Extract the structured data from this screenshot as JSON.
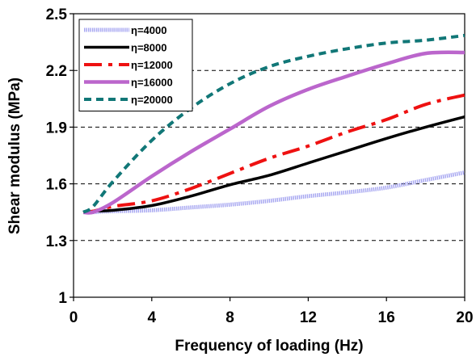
{
  "chart_data": {
    "type": "line",
    "title": "",
    "xlabel": "Frequency of loading (Hz)",
    "ylabel": "Shear modulus (MPa)",
    "xlim": [
      0,
      20
    ],
    "ylim": [
      1,
      2.5
    ],
    "xticks": [
      "0",
      "4",
      "8",
      "12",
      "16",
      "20"
    ],
    "yticks": [
      "1",
      "1.3",
      "1.6",
      "1.9",
      "2.2",
      "2.5"
    ],
    "grid": "horizontal dashed",
    "legend_position": "top-left",
    "series": [
      {
        "name": "η=4000",
        "color": "#9999ee",
        "style": "dotted-thick",
        "points": [
          [
            0.5,
            1.45
          ],
          [
            1,
            1.45
          ],
          [
            2,
            1.455
          ],
          [
            4,
            1.46
          ],
          [
            6,
            1.475
          ],
          [
            8,
            1.49
          ],
          [
            10,
            1.51
          ],
          [
            12,
            1.535
          ],
          [
            14,
            1.555
          ],
          [
            16,
            1.58
          ],
          [
            18,
            1.62
          ],
          [
            20,
            1.66
          ]
        ]
      },
      {
        "name": "η=8000",
        "color": "#000000",
        "style": "solid",
        "points": [
          [
            0.5,
            1.45
          ],
          [
            1,
            1.455
          ],
          [
            2,
            1.46
          ],
          [
            4,
            1.485
          ],
          [
            6,
            1.535
          ],
          [
            8,
            1.595
          ],
          [
            10,
            1.645
          ],
          [
            12,
            1.71
          ],
          [
            14,
            1.775
          ],
          [
            16,
            1.84
          ],
          [
            18,
            1.9
          ],
          [
            20,
            1.955
          ]
        ]
      },
      {
        "name": "η=12000",
        "color": "#ee1111",
        "style": "dash-dot",
        "points": [
          [
            0.5,
            1.45
          ],
          [
            1,
            1.455
          ],
          [
            2,
            1.48
          ],
          [
            4,
            1.51
          ],
          [
            6,
            1.575
          ],
          [
            8,
            1.655
          ],
          [
            10,
            1.735
          ],
          [
            12,
            1.8
          ],
          [
            14,
            1.875
          ],
          [
            16,
            1.94
          ],
          [
            18,
            2.02
          ],
          [
            20,
            2.07
          ]
        ]
      },
      {
        "name": "η=16000",
        "color": "#bb66cc",
        "style": "solid-thick",
        "points": [
          [
            0.5,
            1.45
          ],
          [
            1,
            1.45
          ],
          [
            2,
            1.5
          ],
          [
            4,
            1.64
          ],
          [
            6,
            1.77
          ],
          [
            8,
            1.89
          ],
          [
            10,
            2.01
          ],
          [
            12,
            2.1
          ],
          [
            14,
            2.17
          ],
          [
            16,
            2.235
          ],
          [
            18,
            2.29
          ],
          [
            20,
            2.295
          ]
        ]
      },
      {
        "name": "η=20000",
        "color": "#117777",
        "style": "dashed",
        "points": [
          [
            0.5,
            1.45
          ],
          [
            1,
            1.48
          ],
          [
            2,
            1.61
          ],
          [
            4,
            1.83
          ],
          [
            6,
            2.0
          ],
          [
            8,
            2.13
          ],
          [
            10,
            2.22
          ],
          [
            12,
            2.275
          ],
          [
            14,
            2.315
          ],
          [
            16,
            2.345
          ],
          [
            18,
            2.36
          ],
          [
            20,
            2.385
          ]
        ]
      }
    ]
  }
}
